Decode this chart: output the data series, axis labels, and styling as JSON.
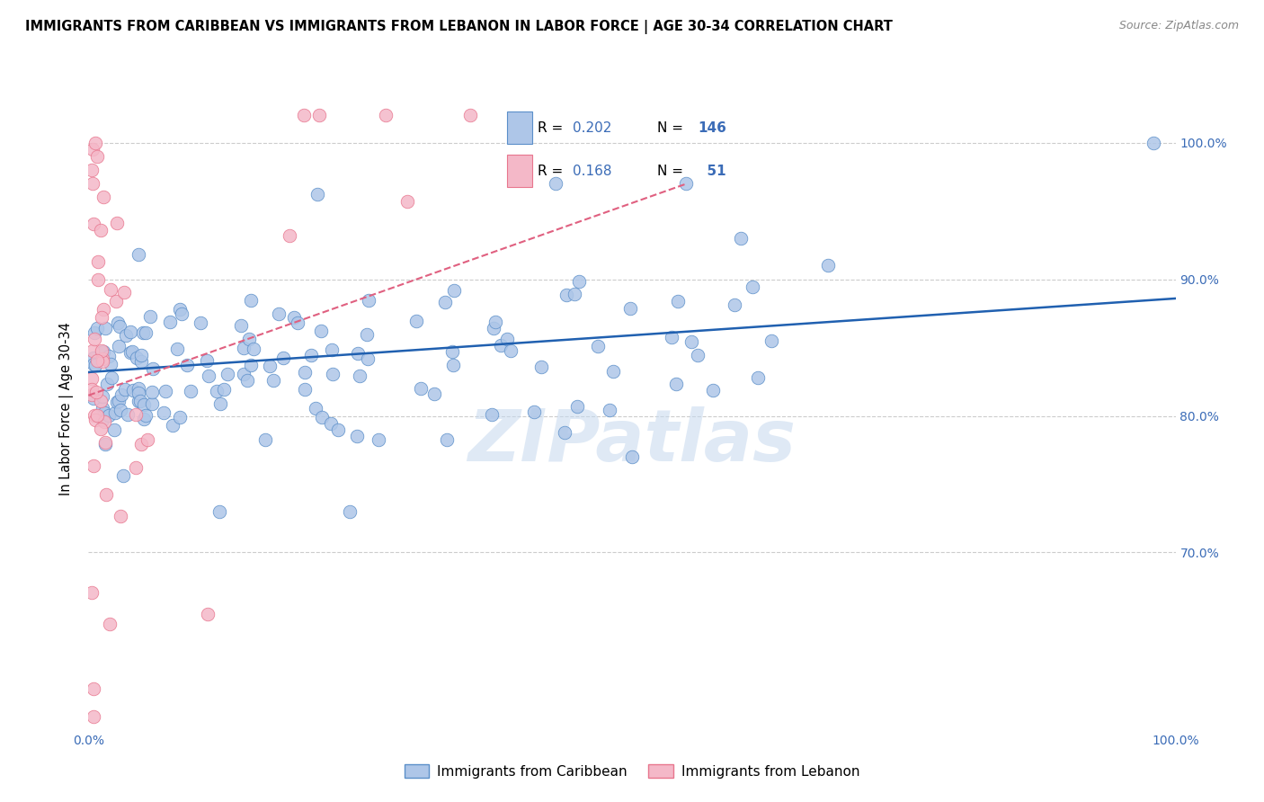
{
  "title": "IMMIGRANTS FROM CARIBBEAN VS IMMIGRANTS FROM LEBANON IN LABOR FORCE | AGE 30-34 CORRELATION CHART",
  "source": "Source: ZipAtlas.com",
  "ylabel": "In Labor Force | Age 30-34",
  "xlim": [
    0.0,
    1.0
  ],
  "ylim": [
    0.57,
    1.04
  ],
  "right_y_ticks": [
    1.0,
    0.9,
    0.8,
    0.7
  ],
  "right_y_tick_labels": [
    "100.0%",
    "90.0%",
    "80.0%",
    "70.0%"
  ],
  "grid_lines": [
    0.7,
    0.8,
    0.9,
    1.0
  ],
  "caribbean_R": 0.202,
  "caribbean_N": 146,
  "lebanon_R": 0.168,
  "lebanon_N": 51,
  "caribbean_color": "#aec6e8",
  "caribbean_edge_color": "#5b8fc9",
  "lebanon_color": "#f4b8c8",
  "lebanon_edge_color": "#e8768e",
  "caribbean_line_color": "#2060b0",
  "lebanon_line_color": "#e06080",
  "watermark": "ZIPatlas",
  "legend_R_color": "#3b6cb7",
  "legend_N_color": "#3b6cb7"
}
